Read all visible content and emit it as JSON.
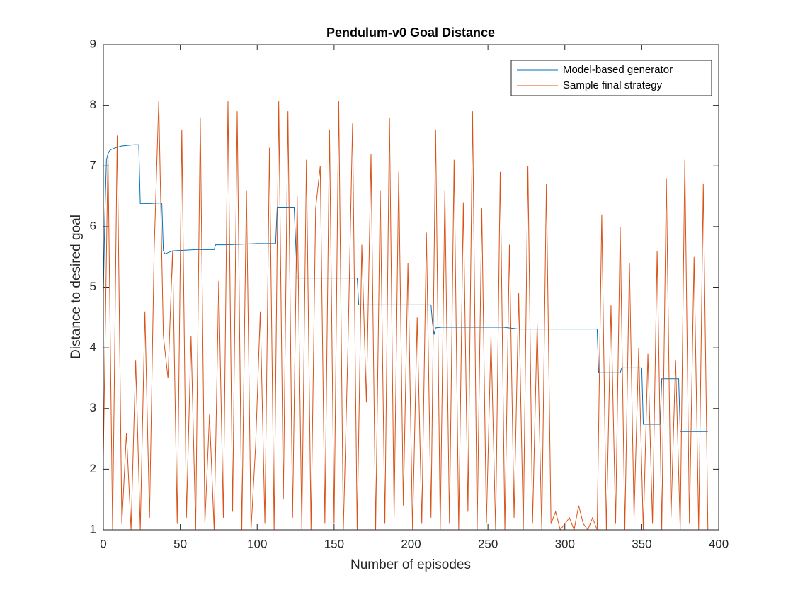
{
  "chart_data": {
    "type": "line",
    "title": "Pendulum-v0 Goal Distance",
    "x_label": "Number of episodes",
    "y_label": "Distance to desired goal",
    "xlim": [
      0,
      400
    ],
    "ylim": [
      1,
      9
    ],
    "xticks": [
      0,
      50,
      100,
      150,
      200,
      250,
      300,
      350,
      400
    ],
    "yticks": [
      1,
      2,
      3,
      4,
      5,
      6,
      7,
      8,
      9
    ],
    "grid": false,
    "legend": "upper right",
    "series": [
      {
        "name": "Model-based generator",
        "color": "#0072bd",
        "x": [
          0,
          1,
          2,
          3,
          4,
          5,
          8,
          12,
          16,
          20,
          23,
          24,
          30,
          38,
          39,
          40,
          45,
          60,
          72,
          73,
          80,
          100,
          112,
          113,
          124,
          126,
          165,
          166,
          213,
          214,
          215,
          216,
          220,
          260,
          270,
          300,
          321,
          322,
          336,
          337,
          350,
          351,
          362,
          363,
          374,
          375,
          393
        ],
        "values": [
          4.9,
          6.2,
          7.1,
          7.2,
          7.25,
          7.27,
          7.3,
          7.33,
          7.34,
          7.35,
          7.35,
          6.38,
          6.38,
          6.39,
          5.6,
          5.55,
          5.6,
          5.62,
          5.62,
          5.7,
          5.7,
          5.72,
          5.72,
          6.32,
          6.32,
          5.15,
          5.15,
          4.71,
          4.71,
          4.4,
          4.22,
          4.33,
          4.34,
          4.34,
          4.31,
          4.31,
          4.31,
          3.59,
          3.59,
          3.67,
          3.67,
          2.74,
          2.74,
          3.49,
          3.49,
          2.62,
          2.62
        ]
      },
      {
        "name": "Sample final strategy",
        "color": "#d95319",
        "x": [
          0,
          3,
          6,
          9,
          12,
          15,
          18,
          21,
          24,
          27,
          30,
          33,
          36,
          39,
          42,
          45,
          48,
          51,
          54,
          57,
          60,
          63,
          66,
          69,
          72,
          75,
          78,
          81,
          84,
          87,
          90,
          93,
          96,
          99,
          102,
          105,
          108,
          111,
          114,
          117,
          120,
          123,
          126,
          129,
          132,
          135,
          138,
          141,
          144,
          147,
          150,
          153,
          156,
          159,
          162,
          165,
          168,
          171,
          174,
          177,
          180,
          183,
          186,
          189,
          192,
          195,
          198,
          201,
          204,
          207,
          210,
          213,
          216,
          219,
          222,
          225,
          228,
          231,
          234,
          237,
          240,
          243,
          246,
          249,
          252,
          255,
          258,
          261,
          264,
          267,
          270,
          273,
          276,
          279,
          282,
          285,
          288,
          291,
          294,
          297,
          300,
          303,
          306,
          309,
          312,
          315,
          318,
          321,
          324,
          327,
          330,
          333,
          336,
          339,
          342,
          345,
          348,
          351,
          354,
          357,
          360,
          363,
          366,
          369,
          372,
          375,
          378,
          381,
          384,
          387,
          390,
          393
        ],
        "values": [
          2.2,
          7.2,
          1.0,
          7.5,
          1.1,
          2.6,
          1.0,
          3.8,
          1.0,
          4.6,
          1.2,
          5.6,
          8.07,
          4.2,
          3.5,
          5.6,
          1.1,
          7.6,
          1.2,
          4.2,
          1.0,
          7.8,
          1.1,
          2.9,
          1.0,
          5.1,
          1.2,
          8.07,
          1.3,
          7.9,
          1.0,
          6.6,
          1.0,
          2.4,
          4.6,
          1.1,
          7.3,
          1.0,
          8.07,
          1.5,
          7.9,
          1.2,
          6.5,
          1.0,
          7.1,
          1.0,
          6.3,
          7.0,
          1.1,
          7.6,
          1.1,
          8.07,
          1.0,
          4.0,
          7.7,
          1.0,
          5.7,
          3.1,
          7.2,
          1.0,
          6.6,
          1.1,
          7.8,
          1.2,
          6.9,
          1.4,
          5.4,
          1.0,
          4.5,
          1.1,
          5.9,
          1.2,
          7.6,
          1.0,
          6.6,
          1.1,
          7.1,
          1.0,
          6.4,
          1.3,
          7.9,
          1.0,
          6.3,
          1.1,
          4.2,
          1.0,
          6.9,
          1.0,
          5.7,
          1.2,
          4.9,
          1.0,
          7.0,
          1.1,
          4.4,
          1.0,
          6.7,
          1.1,
          1.3,
          1.0,
          1.1,
          1.2,
          1.0,
          1.4,
          1.1,
          1.0,
          1.2,
          1.0,
          6.2,
          1.0,
          4.7,
          1.1,
          6.0,
          1.0,
          5.4,
          1.2,
          4.0,
          1.0,
          3.9,
          1.1,
          5.6,
          1.0,
          6.8,
          1.2,
          3.8,
          1.0,
          7.1,
          1.1,
          5.5,
          1.0,
          6.7,
          1.0
        ]
      }
    ]
  }
}
